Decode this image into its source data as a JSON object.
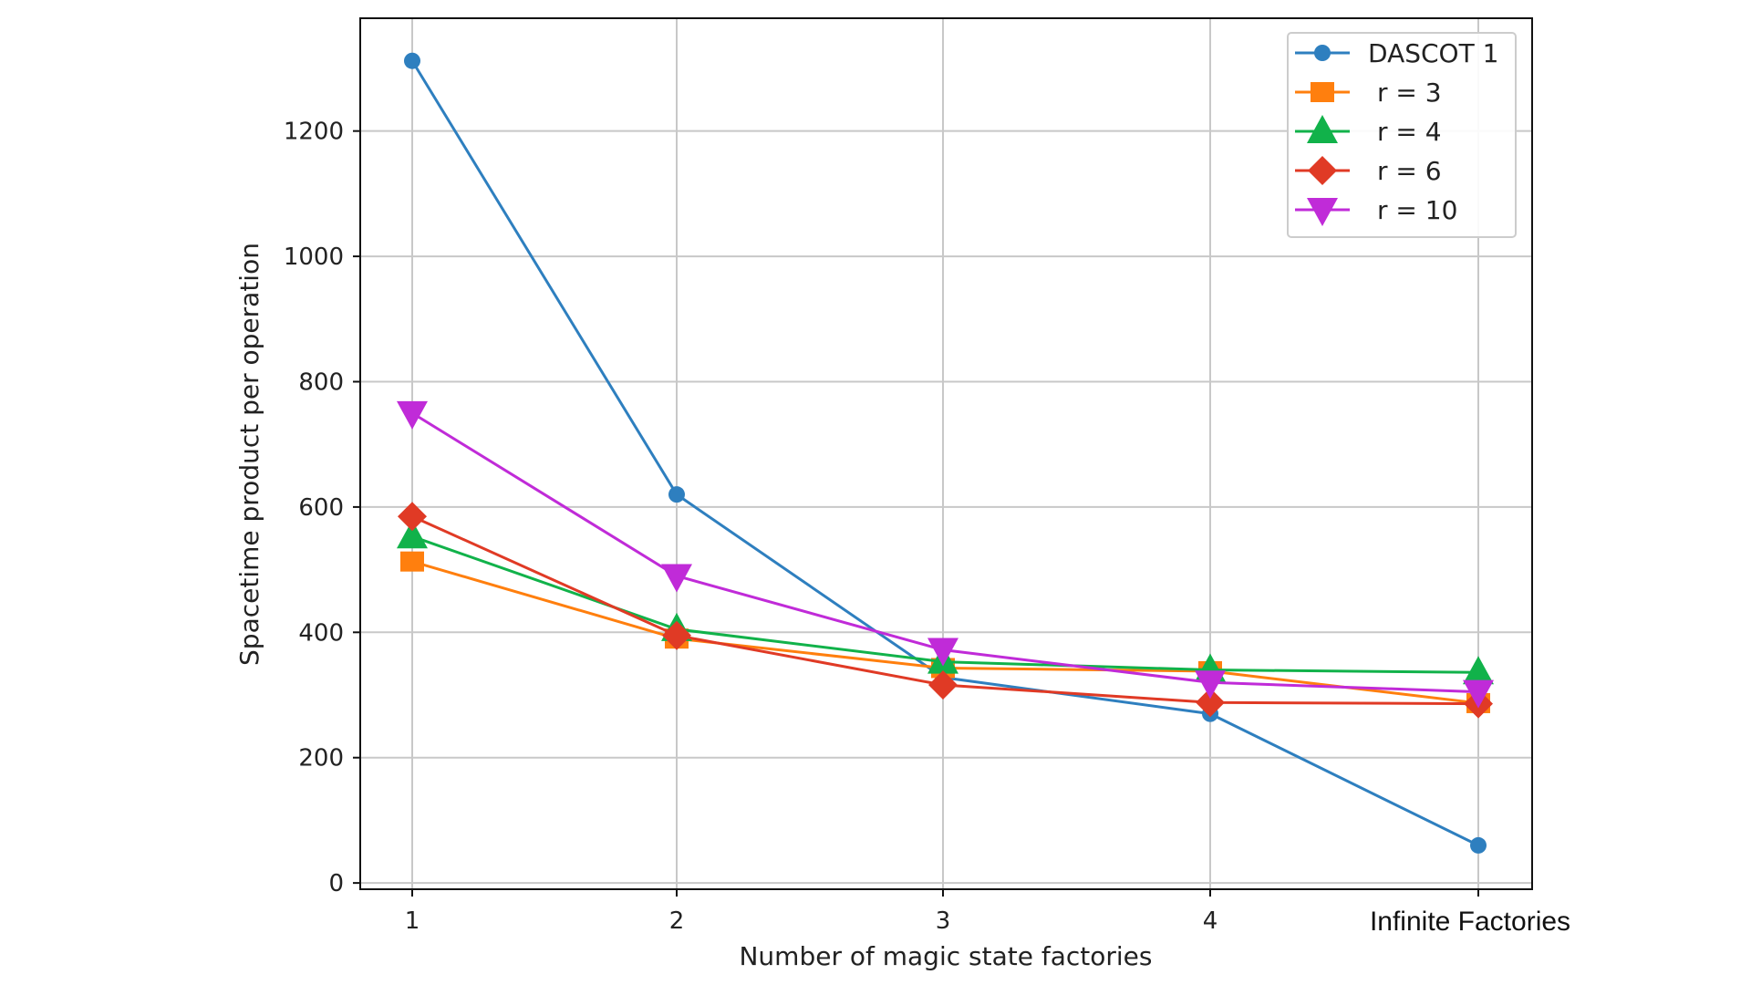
{
  "chart_data": {
    "type": "line",
    "title": "",
    "xlabel": "Number of magic state factories",
    "ylabel": "Spacetime product per operation",
    "categories": [
      "1",
      "2",
      "3",
      "4",
      "Infinite Factories"
    ],
    "yticks": [
      0,
      200,
      400,
      600,
      800,
      1000,
      1200
    ],
    "ylim": [
      -10,
      1380
    ],
    "grid": true,
    "legend_position": "top-right",
    "series": [
      {
        "name": "DASCOT 1",
        "marker": "circle",
        "color": "#2e7fbf",
        "values": [
          1312,
          620,
          328,
          270,
          60
        ]
      },
      {
        "name": "r = 3",
        "marker": "square",
        "color": "#ff7f0e",
        "values": [
          513,
          390,
          343,
          338,
          287
        ]
      },
      {
        "name": "r = 4",
        "marker": "triangle-up",
        "color": "#11b24a",
        "values": [
          553,
          405,
          353,
          340,
          336
        ]
      },
      {
        "name": "r = 6",
        "marker": "diamond",
        "color": "#e03a25",
        "values": [
          585,
          395,
          316,
          288,
          286
        ]
      },
      {
        "name": "r = 10",
        "marker": "triangle-down",
        "color": "#c02bd8",
        "values": [
          750,
          490,
          372,
          320,
          305
        ]
      }
    ]
  }
}
